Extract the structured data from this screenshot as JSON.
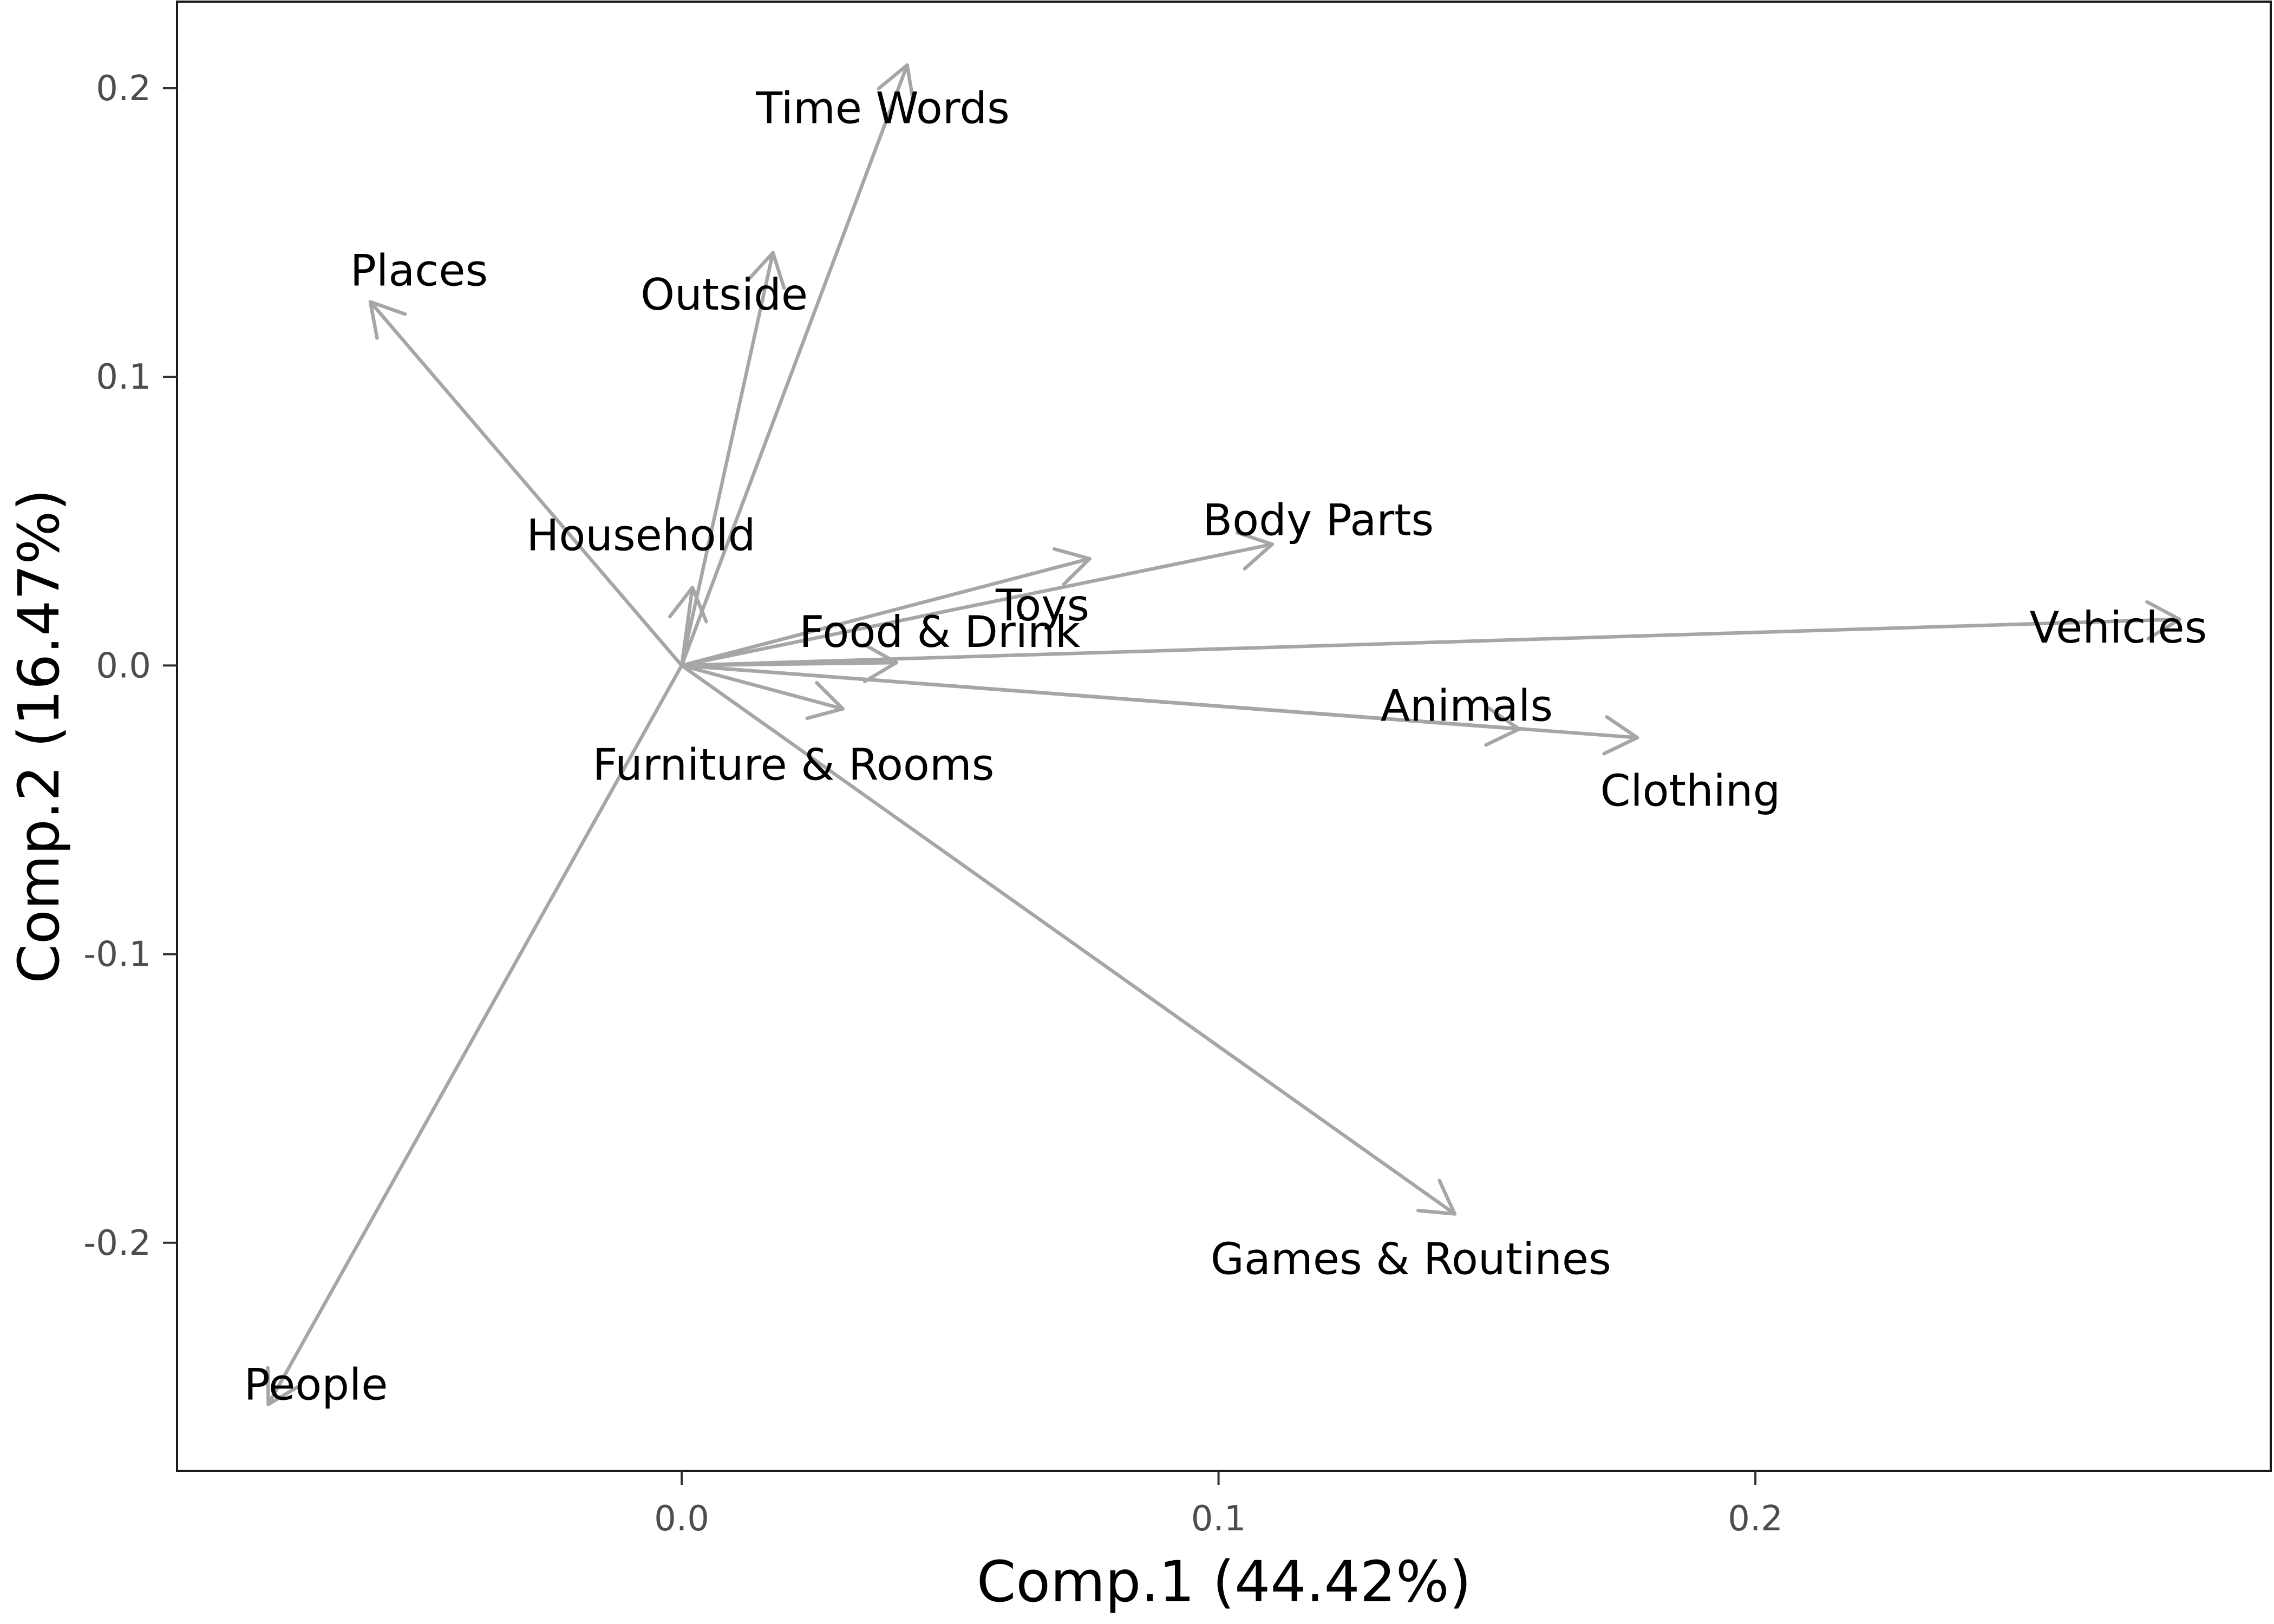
{
  "chart_data": {
    "type": "biplot",
    "xlabel": "Comp.1 (44.42%)",
    "ylabel": "Comp.2 (16.47%)",
    "xlim": [
      -0.094,
      0.296
    ],
    "ylim": [
      -0.279,
      0.23
    ],
    "xticks": [
      0.0,
      0.1,
      0.2
    ],
    "yticks": [
      0.2,
      0.1,
      0.0,
      -0.1,
      -0.2
    ],
    "xtick_labels": [
      "0.0",
      "0.1",
      "0.2"
    ],
    "ytick_labels": [
      "0.2",
      "0.1",
      "0.0",
      "-0.1",
      "-0.2"
    ],
    "grid": false,
    "arrow_color": "#a6a6a6",
    "points": [
      {
        "label": "Time Words",
        "x": 0.042,
        "y": 0.208
      },
      {
        "label": "Places",
        "x": -0.058,
        "y": 0.126
      },
      {
        "label": "Outside",
        "x": 0.017,
        "y": 0.143
      },
      {
        "label": "Household",
        "x": 0.002,
        "y": 0.027
      },
      {
        "label": "Body Parts",
        "x": 0.11,
        "y": 0.042
      },
      {
        "label": "Toys",
        "x": 0.076,
        "y": 0.037
      },
      {
        "label": "Food & Drink",
        "x": 0.04,
        "y": 0.001
      },
      {
        "label": "Vehicles",
        "x": 0.279,
        "y": 0.016
      },
      {
        "label": "Animals",
        "x": 0.156,
        "y": -0.022
      },
      {
        "label": "Clothing",
        "x": 0.178,
        "y": -0.025
      },
      {
        "label": "Furniture & Rooms",
        "x": 0.03,
        "y": -0.015
      },
      {
        "label": "Games & Routines",
        "x": 0.144,
        "y": -0.19
      },
      {
        "label": "People",
        "x": -0.077,
        "y": -0.256
      }
    ]
  }
}
